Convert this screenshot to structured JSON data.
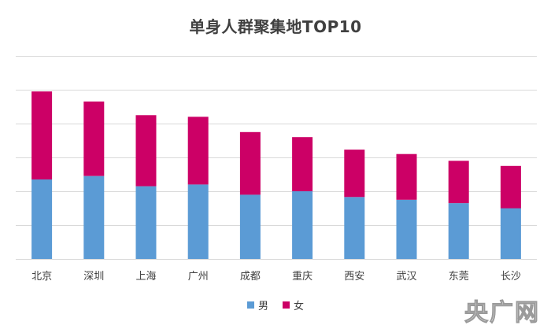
{
  "chart_data": {
    "type": "bar",
    "stacked": true,
    "title": "单身人群聚集地TOP10",
    "categories": [
      "北京",
      "深圳",
      "上海",
      "广州",
      "成都",
      "重庆",
      "西安",
      "武汉",
      "东莞",
      "长沙"
    ],
    "series": [
      {
        "name": "男",
        "color": "#5b9bd5",
        "values": [
          23.5,
          24.5,
          21.5,
          22.0,
          19.0,
          20.0,
          18.3,
          17.5,
          16.5,
          15.0
        ]
      },
      {
        "name": "女",
        "color": "#cc0066",
        "values": [
          26.0,
          22.0,
          21.0,
          20.0,
          18.5,
          16.0,
          14.0,
          13.5,
          12.5,
          12.5
        ]
      }
    ],
    "ylim": [
      0,
      60
    ],
    "y_gridlines": [
      0,
      10,
      20,
      30,
      40,
      50,
      60
    ],
    "grid": true,
    "legend": "bottom",
    "y_tick_labels_shown": false
  },
  "watermark": "央广网"
}
